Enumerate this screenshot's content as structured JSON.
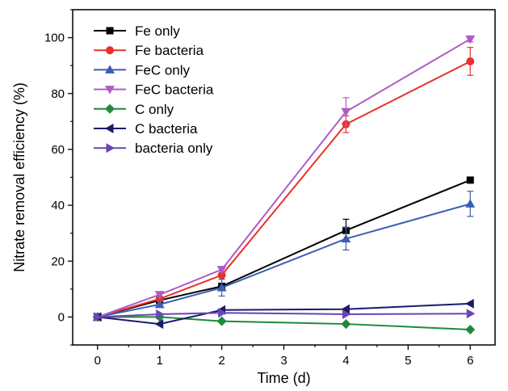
{
  "chart_data": {
    "type": "line",
    "xlabel": "Time (d)",
    "ylabel": "Nitrate removal efficiency (%)",
    "xlim": [
      -0.4,
      6.4
    ],
    "ylim": [
      -10,
      110
    ],
    "x_ticks": [
      "0",
      "1",
      "2",
      "3",
      "4",
      "5",
      "6"
    ],
    "y_ticks": [
      "0",
      "20",
      "40",
      "60",
      "80",
      "100"
    ],
    "legend_position": "top-left",
    "grid": false,
    "series": [
      {
        "name": "Fe only",
        "color": "#000000",
        "marker": "square",
        "x": [
          0,
          1,
          2,
          4,
          6
        ],
        "y": [
          0,
          6,
          11,
          31,
          49
        ],
        "err": [
          0,
          0,
          0,
          4,
          0
        ]
      },
      {
        "name": "Fe bacteria",
        "color": "#e8312a",
        "marker": "circle",
        "x": [
          0,
          1,
          2,
          4,
          6
        ],
        "y": [
          0,
          6.5,
          15,
          69,
          91.5
        ],
        "err": [
          0,
          0,
          0,
          3,
          5
        ]
      },
      {
        "name": "FeC only",
        "color": "#3a5fb0",
        "marker": "triangle-up",
        "x": [
          0,
          1,
          2,
          4,
          6
        ],
        "y": [
          0,
          4.5,
          10.5,
          28,
          40.5
        ],
        "err": [
          0,
          0,
          3,
          4,
          4.5
        ]
      },
      {
        "name": "FeC bacteria",
        "color": "#b05bc4",
        "marker": "triangle-down",
        "x": [
          0,
          1,
          2,
          4,
          6
        ],
        "y": [
          0,
          8,
          17,
          73.5,
          99.5
        ],
        "err": [
          0,
          0,
          0,
          5,
          1
        ]
      },
      {
        "name": "C only",
        "color": "#1f8a3a",
        "marker": "diamond",
        "x": [
          0,
          1,
          2,
          4,
          6
        ],
        "y": [
          0,
          0,
          -1.5,
          -2.5,
          -4.5
        ],
        "err": [
          0,
          0,
          0,
          0,
          0
        ]
      },
      {
        "name": "C bacteria",
        "color": "#1c1a6b",
        "marker": "triangle-left",
        "x": [
          0,
          1,
          2,
          4,
          6
        ],
        "y": [
          0,
          -2.5,
          2.5,
          2.8,
          4.8
        ],
        "err": [
          0,
          0,
          0,
          0,
          0
        ]
      },
      {
        "name": "bacteria only",
        "color": "#6a45b5",
        "marker": "triangle-right",
        "x": [
          0,
          1,
          2,
          4,
          6
        ],
        "y": [
          0,
          1,
          1.5,
          1,
          1.2
        ],
        "err": [
          0,
          0,
          0,
          0,
          0
        ]
      }
    ]
  }
}
